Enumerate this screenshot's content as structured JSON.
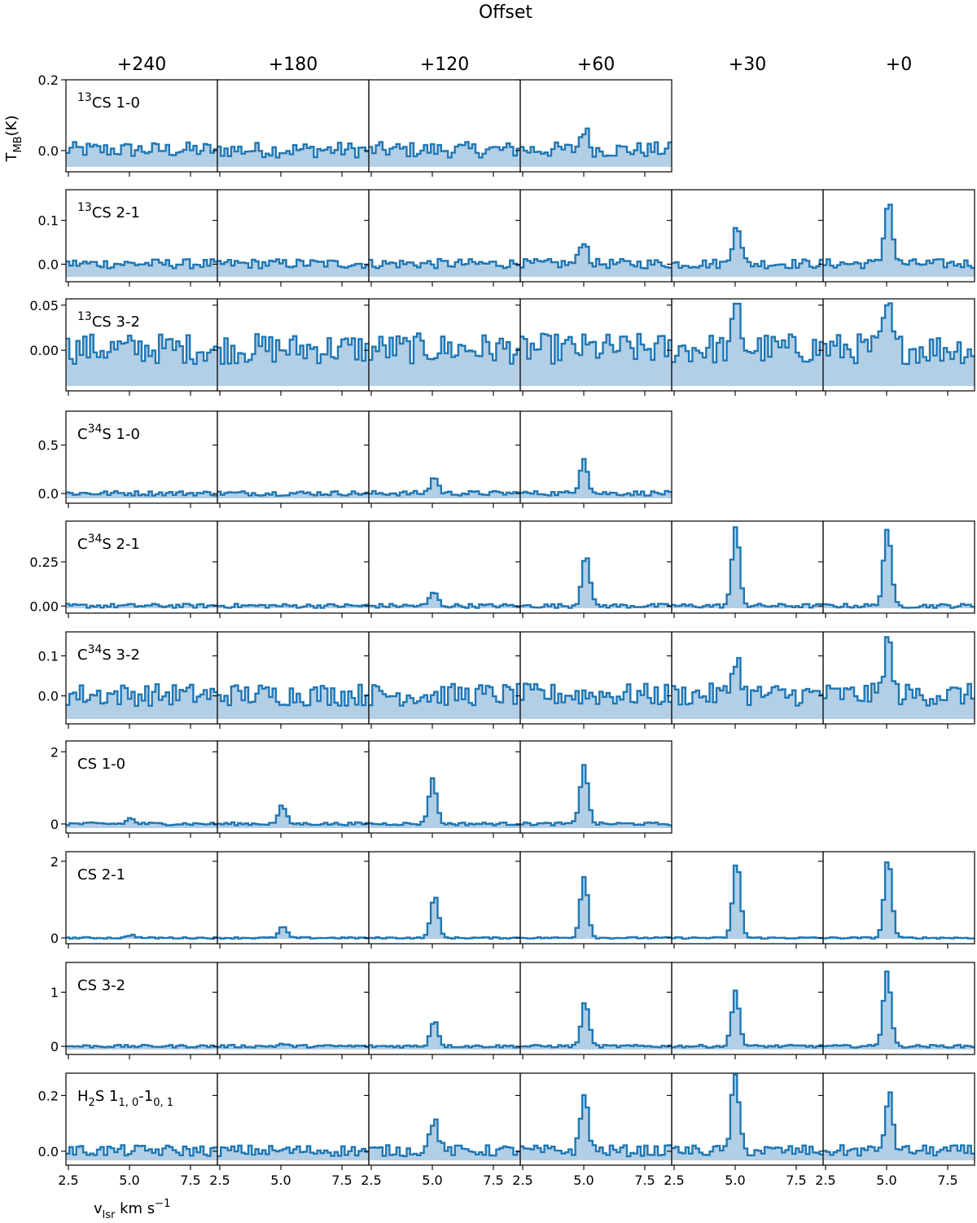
{
  "figure": {
    "title": "Offset",
    "ylabel": "T_MB(K)",
    "xlabel": "v_lsr km s⁻¹",
    "line_color": "#1f77b4",
    "fill_color": "#b3cfe6"
  },
  "chart_data": {
    "type": "line",
    "style": "step spectra with filled area, grid of panels, shared x axis per column",
    "offsets": [
      "+240",
      "+180",
      "+120",
      "+60",
      "+30",
      "+0"
    ],
    "xlim": [
      2.4,
      8.6
    ],
    "xticks": [
      2.5,
      5.0,
      7.5
    ],
    "xtick_labels": [
      "2.5",
      "5.0",
      "7.5"
    ],
    "grid": false,
    "rows": [
      {
        "line": "13CS 1-0",
        "label_html": "<tspan font-size='14' dy='-8'>13</tspan><tspan dy='8'>CS 1-0</tspan>",
        "ylim": [
          -0.06,
          0.2
        ],
        "yticks": [
          0.0,
          0.2
        ],
        "ytick_labels": [
          "0.0",
          "0.2"
        ],
        "present": [
          1,
          1,
          1,
          1,
          0,
          0
        ],
        "peaks": [
          0,
          0,
          0,
          0.06,
          0,
          0
        ],
        "noise": 0.022
      },
      {
        "line": "13CS 2-1",
        "label_html": "<tspan font-size='14' dy='-8'>13</tspan><tspan dy='8'>CS 2-1</tspan>",
        "ylim": [
          -0.04,
          0.17
        ],
        "yticks": [
          0.0,
          0.1
        ],
        "ytick_labels": [
          "0.0",
          "0.1"
        ],
        "present": [
          1,
          1,
          1,
          1,
          1,
          1
        ],
        "peaks": [
          0,
          0,
          0,
          0.055,
          0.095,
          0.148
        ],
        "noise": 0.011
      },
      {
        "line": "13CS 3-2",
        "label_html": "<tspan font-size='14' dy='-8'>13</tspan><tspan dy='8'>CS 3-2</tspan>",
        "ylim": [
          -0.045,
          0.057
        ],
        "yticks": [
          0.0,
          0.05
        ],
        "ytick_labels": [
          "0.00",
          "0.05"
        ],
        "present": [
          1,
          1,
          1,
          1,
          1,
          1
        ],
        "peaks": [
          0,
          0,
          0,
          0,
          0.045,
          0.048
        ],
        "noise": 0.017
      },
      {
        "line": "C34S 1-0",
        "label_html": "<tspan>C</tspan><tspan font-size='14' dy='-8'>34</tspan><tspan dy='8'>S 1-0</tspan>",
        "ylim": [
          -0.1,
          0.85
        ],
        "yticks": [
          0.0,
          0.5
        ],
        "ytick_labels": [
          "0.0",
          "0.5"
        ],
        "present": [
          1,
          1,
          1,
          1,
          0,
          0
        ],
        "peaks": [
          0,
          0,
          0.17,
          0.37,
          0,
          0
        ],
        "noise": 0.025
      },
      {
        "line": "C34S 2-1",
        "label_html": "<tspan>C</tspan><tspan font-size='14' dy='-8'>34</tspan><tspan dy='8'>S 2-1</tspan>",
        "ylim": [
          -0.04,
          0.48
        ],
        "yticks": [
          0.0,
          0.25
        ],
        "ytick_labels": [
          "0.00",
          "0.25"
        ],
        "present": [
          1,
          1,
          1,
          1,
          1,
          1
        ],
        "peaks": [
          0,
          0,
          0.08,
          0.3,
          0.44,
          0.44
        ],
        "noise": 0.012
      },
      {
        "line": "C34S 3-2",
        "label_html": "<tspan>C</tspan><tspan font-size='14' dy='-8'>34</tspan><tspan dy='8'>S 3-2</tspan>",
        "ylim": [
          -0.07,
          0.16
        ],
        "yticks": [
          0.0,
          0.1
        ],
        "ytick_labels": [
          "0.0",
          "0.1"
        ],
        "present": [
          1,
          1,
          1,
          1,
          1,
          1
        ],
        "peaks": [
          0,
          0,
          0,
          0,
          0.1,
          0.14
        ],
        "noise": 0.028
      },
      {
        "line": "CS 1-0",
        "label_html": "<tspan>CS 1-0</tspan>",
        "ylim": [
          -0.25,
          2.3
        ],
        "yticks": [
          0,
          2
        ],
        "ytick_labels": [
          "0",
          "2"
        ],
        "present": [
          1,
          1,
          1,
          1,
          0,
          0
        ],
        "peaks": [
          0.15,
          0.5,
          1.25,
          1.65,
          0,
          0
        ],
        "noise": 0.04
      },
      {
        "line": "CS 2-1",
        "label_html": "<tspan>CS 2-1</tspan>",
        "ylim": [
          -0.15,
          2.25
        ],
        "yticks": [
          0,
          2
        ],
        "ytick_labels": [
          "0",
          "2"
        ],
        "present": [
          1,
          1,
          1,
          1,
          1,
          1
        ],
        "peaks": [
          0.08,
          0.3,
          1.1,
          1.6,
          2.0,
          2.1
        ],
        "noise": 0.02
      },
      {
        "line": "CS 3-2",
        "label_html": "<tspan>CS 3-2</tspan>",
        "ylim": [
          -0.15,
          1.55
        ],
        "yticks": [
          0,
          1
        ],
        "ytick_labels": [
          "0",
          "1"
        ],
        "present": [
          1,
          1,
          1,
          1,
          1,
          1
        ],
        "peaks": [
          0,
          0.04,
          0.48,
          0.82,
          1.02,
          1.4
        ],
        "noise": 0.025
      },
      {
        "line": "H2S 1_1,0-1_0,1",
        "label_html": "<tspan>H</tspan><tspan font-size='13' dy='6'>2</tspan><tspan dy='-6'>S 1</tspan><tspan font-size='13' dy='6'>1, 0</tspan><tspan dy='-6'>-1</tspan><tspan font-size='13' dy='6'>0, 1</tspan>",
        "ylim": [
          -0.05,
          0.28
        ],
        "yticks": [
          0.0,
          0.2
        ],
        "ytick_labels": [
          "0.0",
          "0.2"
        ],
        "present": [
          1,
          1,
          1,
          1,
          1,
          1
        ],
        "peaks": [
          0,
          0,
          0.12,
          0.2,
          0.27,
          0.2
        ],
        "noise": 0.02
      }
    ]
  }
}
